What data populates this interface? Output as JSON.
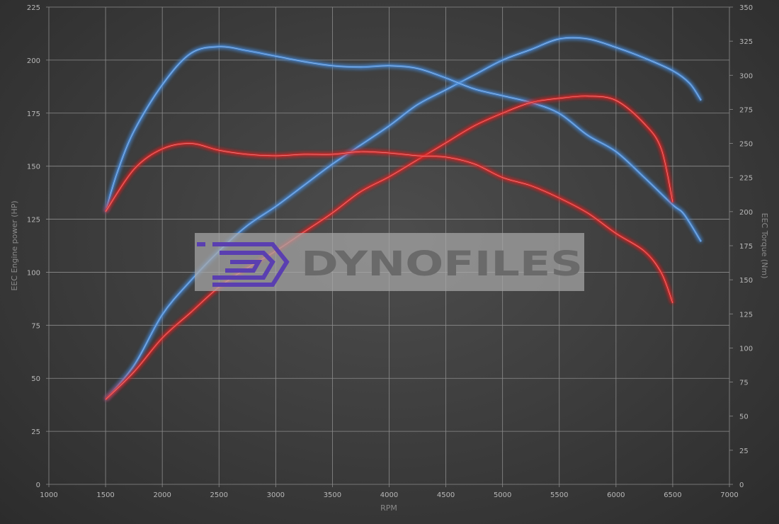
{
  "chart_data": {
    "type": "line",
    "xlabel": "RPM",
    "ylabel_left": "EEC Engine power (HP)",
    "ylabel_right": "EEC Torque (Nm)",
    "xlim": [
      1000,
      7000
    ],
    "ylim_left": [
      0,
      225
    ],
    "ylim_right": [
      0,
      350
    ],
    "x_ticks": [
      "1000",
      "1500",
      "2000",
      "2500",
      "3000",
      "3500",
      "4000",
      "4500",
      "5000",
      "5500",
      "6000",
      "6500",
      "7000"
    ],
    "y_left_ticks": [
      "0",
      "25",
      "50",
      "75",
      "100",
      "125",
      "150",
      "175",
      "200",
      "225"
    ],
    "y_right_ticks": [
      "0",
      "25",
      "50",
      "75",
      "100",
      "125",
      "150",
      "175",
      "200",
      "225",
      "250",
      "275",
      "300",
      "325",
      "350"
    ],
    "grid": true,
    "colors": {
      "tuned": "#4a8fe0",
      "stock": "#e02828"
    },
    "series": [
      {
        "axis": "left",
        "color": "#4a8fe0",
        "x": [
          1500,
          1750,
          2000,
          2250,
          2500,
          2750,
          3000,
          3250,
          3500,
          3750,
          4000,
          4250,
          4500,
          4750,
          5000,
          5250,
          5500,
          5750,
          6000,
          6250,
          6500,
          6650,
          6750
        ],
        "y": [
          40,
          56,
          80,
          96,
          110,
          122,
          131,
          141,
          151,
          160,
          169,
          179,
          186,
          193,
          200,
          205,
          210,
          210,
          206,
          201,
          195,
          189,
          181
        ]
      },
      {
        "axis": "right",
        "color": "#4a8fe0",
        "x": [
          1500,
          1600,
          1750,
          2000,
          2250,
          2500,
          2750,
          3000,
          3250,
          3500,
          3750,
          4000,
          4250,
          4500,
          4750,
          5000,
          5250,
          5500,
          5750,
          6000,
          6250,
          6500,
          6600,
          6750
        ],
        "y": [
          200,
          228,
          259,
          293,
          316,
          321,
          318,
          314,
          310,
          307,
          306,
          307,
          305,
          298,
          290,
          285,
          280,
          272,
          256,
          244,
          225,
          205,
          198,
          178
        ]
      },
      {
        "axis": "left",
        "color": "#e02828",
        "x": [
          1500,
          1750,
          2000,
          2250,
          2500,
          2750,
          3000,
          3250,
          3500,
          3750,
          4000,
          4250,
          4500,
          4750,
          5000,
          5250,
          5500,
          5750,
          6000,
          6250,
          6400,
          6500
        ],
        "y": [
          40,
          53,
          69,
          81,
          93,
          102,
          110,
          119,
          128,
          138,
          145,
          153,
          161,
          169,
          175,
          180,
          182,
          183,
          181,
          170,
          158,
          133
        ]
      },
      {
        "axis": "right",
        "color": "#e02828",
        "x": [
          1500,
          1750,
          2000,
          2250,
          2500,
          2750,
          3000,
          3250,
          3500,
          3750,
          4000,
          4250,
          4500,
          4750,
          5000,
          5250,
          5500,
          5750,
          6000,
          6250,
          6400,
          6500
        ],
        "y": [
          200,
          231,
          246,
          250,
          245,
          242,
          241,
          242,
          242,
          244,
          243,
          241,
          240,
          235,
          225,
          219,
          210,
          199,
          184,
          171,
          155,
          133
        ]
      }
    ]
  },
  "watermark": {
    "text": "DYNOFILES",
    "logo_color": "#5a3fb0"
  }
}
